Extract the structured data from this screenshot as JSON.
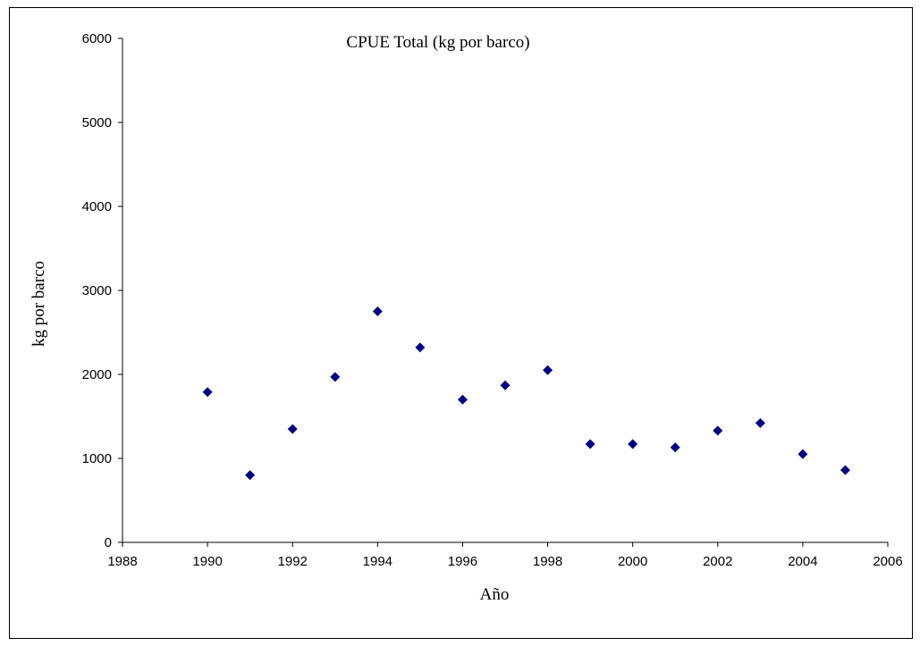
{
  "chart_data": {
    "type": "scatter",
    "title": "CPUE Total (kg por barco)",
    "x_label": "Año",
    "y_label": "kg por barco",
    "x": [
      1990,
      1991,
      1992,
      1993,
      1994,
      1995,
      1996,
      1997,
      1998,
      1999,
      2000,
      2001,
      2002,
      2003,
      2004,
      2005
    ],
    "values": [
      1790,
      800,
      1350,
      1970,
      2750,
      2320,
      1700,
      1870,
      2050,
      1170,
      1170,
      1130,
      1330,
      1420,
      1050,
      860
    ],
    "color": "#000080",
    "xlim": [
      1988,
      2006
    ],
    "xticks": [
      1988,
      1990,
      1992,
      1994,
      1996,
      1998,
      2000,
      2002,
      2004,
      2006
    ],
    "ylim": [
      0,
      6000
    ],
    "yticks": [
      0,
      1000,
      2000,
      3000,
      4000,
      5000,
      6000
    ],
    "grid": false
  }
}
